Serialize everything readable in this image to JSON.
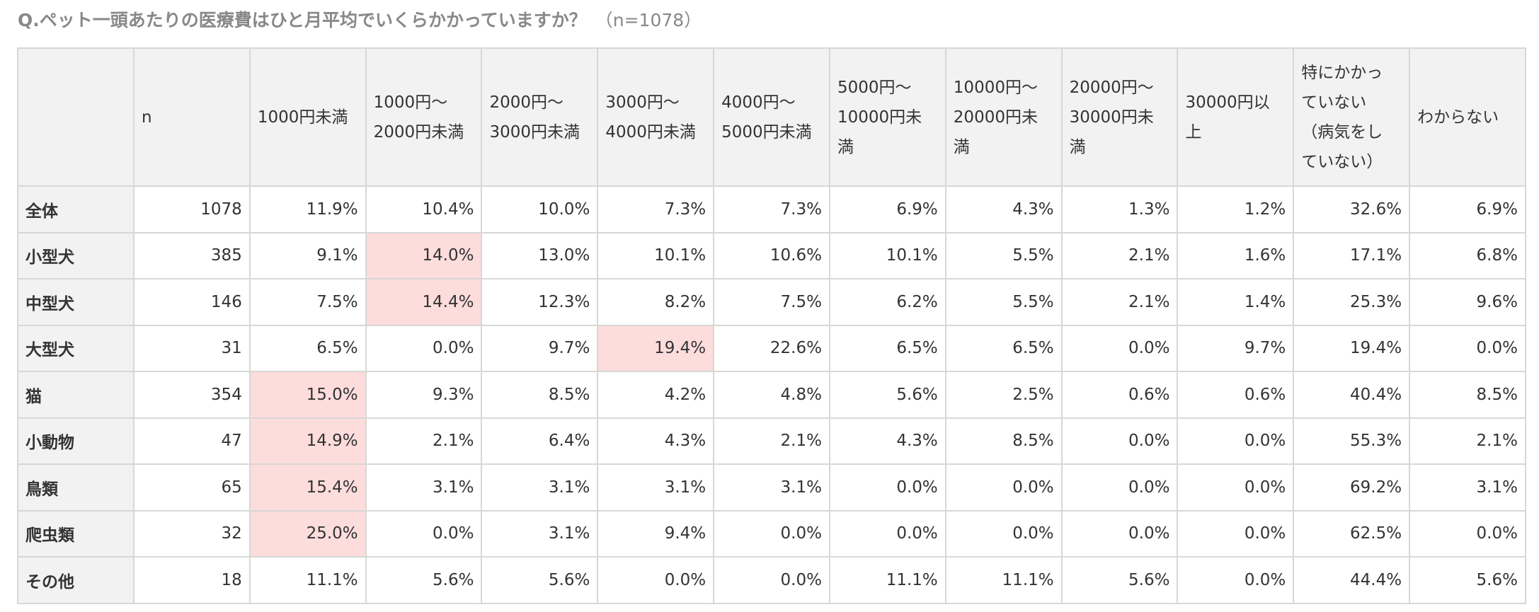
{
  "title": "Q.ペット一頭あたりの医療費はひと月平均でいくらかかっていますか？",
  "title_n": "（n=1078）",
  "colors": {
    "header_bg": "#f2f2f2",
    "highlight": "#fddcdc",
    "border": "#d7d7d7"
  },
  "chart_data": {
    "type": "table",
    "columns": [
      "",
      "n",
      "1000円未満",
      "1000円〜\n2000円未満",
      "2000円〜\n3000円未満",
      "3000円〜\n4000円未満",
      "4000円〜\n5000円未満",
      "5000円〜\n10000円未満",
      "10000円〜\n20000円未満",
      "20000円〜\n30000円未満",
      "30000円以上",
      "特にかかっ\nていない\n（病気をし\nていない）",
      "わからない"
    ],
    "rows": [
      {
        "label": "全体",
        "values": [
          "1078",
          "11.9%",
          "10.4%",
          "10.0%",
          "7.3%",
          "7.3%",
          "6.9%",
          "4.3%",
          "1.3%",
          "1.2%",
          "32.6%",
          "6.9%"
        ],
        "highlight": []
      },
      {
        "label": "小型犬",
        "values": [
          "385",
          "9.1%",
          "14.0%",
          "13.0%",
          "10.1%",
          "10.6%",
          "10.1%",
          "5.5%",
          "2.1%",
          "1.6%",
          "17.1%",
          "6.8%"
        ],
        "highlight": [
          2
        ]
      },
      {
        "label": "中型犬",
        "values": [
          "146",
          "7.5%",
          "14.4%",
          "12.3%",
          "8.2%",
          "7.5%",
          "6.2%",
          "5.5%",
          "2.1%",
          "1.4%",
          "25.3%",
          "9.6%"
        ],
        "highlight": [
          2
        ]
      },
      {
        "label": "大型犬",
        "values": [
          "31",
          "6.5%",
          "0.0%",
          "9.7%",
          "19.4%",
          "22.6%",
          "6.5%",
          "6.5%",
          "0.0%",
          "9.7%",
          "19.4%",
          "0.0%"
        ],
        "highlight": [
          4
        ]
      },
      {
        "label": "猫",
        "values": [
          "354",
          "15.0%",
          "9.3%",
          "8.5%",
          "4.2%",
          "4.8%",
          "5.6%",
          "2.5%",
          "0.6%",
          "0.6%",
          "40.4%",
          "8.5%"
        ],
        "highlight": [
          1
        ]
      },
      {
        "label": "小動物",
        "values": [
          "47",
          "14.9%",
          "2.1%",
          "6.4%",
          "4.3%",
          "2.1%",
          "4.3%",
          "8.5%",
          "0.0%",
          "0.0%",
          "55.3%",
          "2.1%"
        ],
        "highlight": [
          1
        ]
      },
      {
        "label": "鳥類",
        "values": [
          "65",
          "15.4%",
          "3.1%",
          "3.1%",
          "3.1%",
          "3.1%",
          "0.0%",
          "0.0%",
          "0.0%",
          "0.0%",
          "69.2%",
          "3.1%"
        ],
        "highlight": [
          1
        ]
      },
      {
        "label": "爬虫類",
        "values": [
          "32",
          "25.0%",
          "0.0%",
          "3.1%",
          "9.4%",
          "0.0%",
          "0.0%",
          "0.0%",
          "0.0%",
          "0.0%",
          "62.5%",
          "0.0%"
        ],
        "highlight": [
          1
        ]
      },
      {
        "label": "その他",
        "values": [
          "18",
          "11.1%",
          "5.6%",
          "5.6%",
          "0.0%",
          "0.0%",
          "11.1%",
          "11.1%",
          "5.6%",
          "0.0%",
          "44.4%",
          "5.6%"
        ],
        "highlight": []
      }
    ]
  }
}
